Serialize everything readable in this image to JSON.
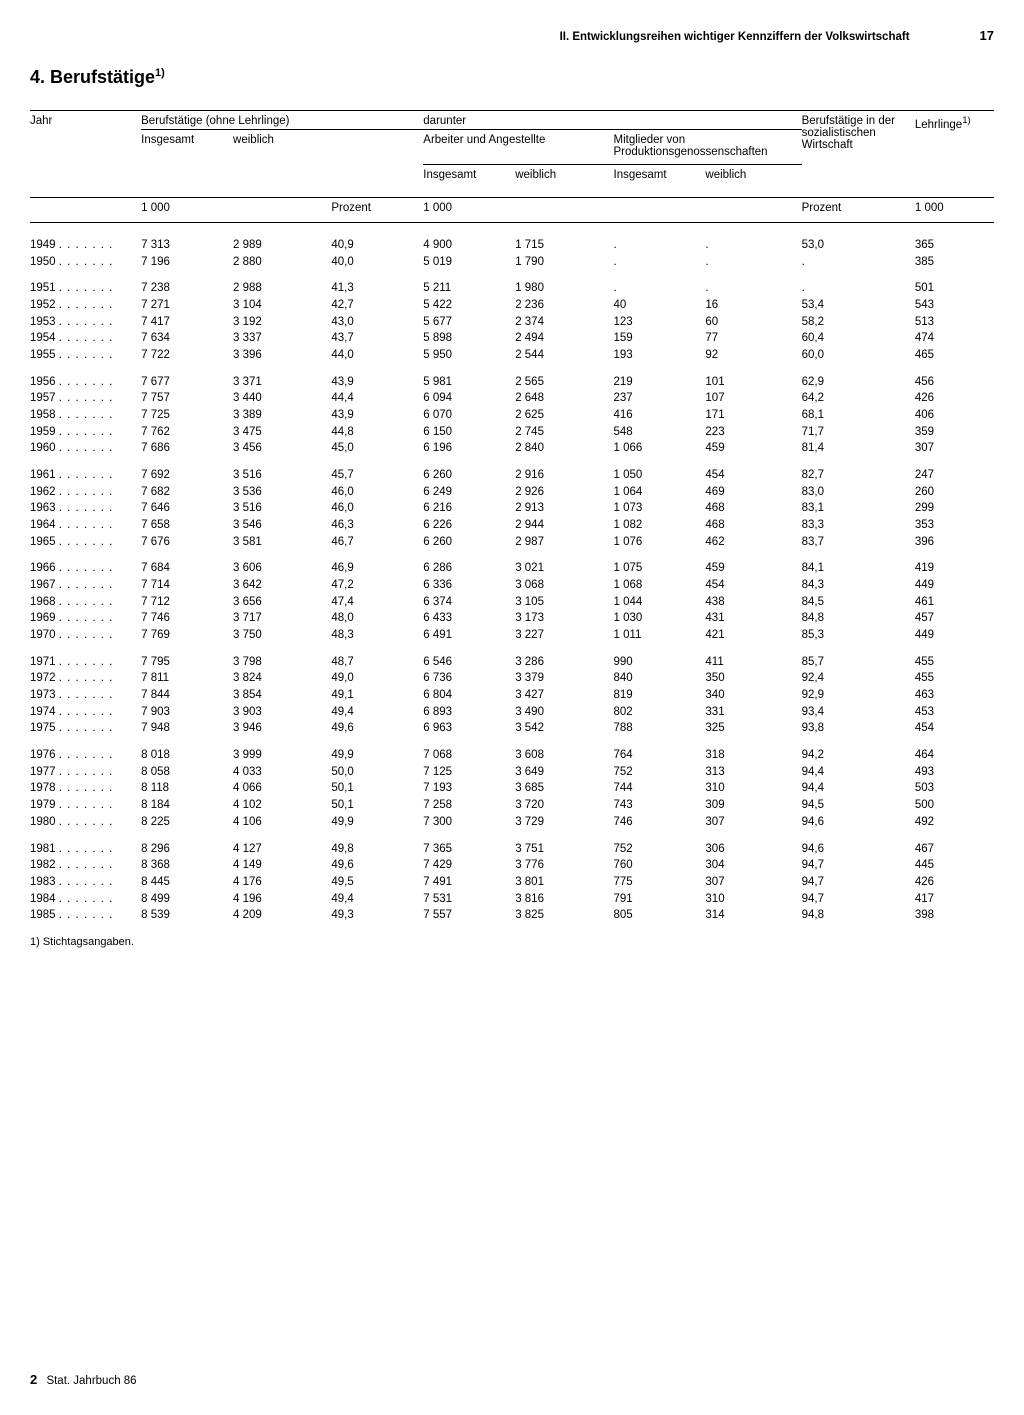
{
  "header": {
    "section_label": "II. Entwicklungsreihen wichtiger Kennziffern der Volkswirtschaft",
    "page_number": "17"
  },
  "title": "4. Berufstätige",
  "title_sup": "1)",
  "footnote": "1) Stichtagsangaben.",
  "footer_left_bold": "2",
  "footer_left_text": "Stat. Jahrbuch 86",
  "columns": {
    "jahr": "Jahr",
    "beruf_ohne": "Berufstätige (ohne Lehrlinge)",
    "insgesamt": "Insgesamt",
    "weiblich": "weiblich",
    "darunter": "darunter",
    "arbeiter": "Arbeiter und Angestellte",
    "mitglieder": "Mitglieder von Produktionsgenossenschaften",
    "soz": "Berufstätige in der sozialistischen Wirtschaft",
    "lehrlinge": "Lehrlinge",
    "lehrlinge_sup": "1)",
    "u1000": "1 000",
    "prozent": "Prozent"
  },
  "table": {
    "groups": [
      [
        {
          "jahr": "1949",
          "c1": "7 313",
          "c2": "2 989",
          "c3": "40,9",
          "c4": "4 900",
          "c5": "1 715",
          "c6": ".",
          "c7": ".",
          "c8": "53,0",
          "c9": "365"
        },
        {
          "jahr": "1950",
          "c1": "7 196",
          "c2": "2 880",
          "c3": "40,0",
          "c4": "5 019",
          "c5": "1 790",
          "c6": ".",
          "c7": ".",
          "c8": ".",
          "c9": "385"
        }
      ],
      [
        {
          "jahr": "1951",
          "c1": "7 238",
          "c2": "2 988",
          "c3": "41,3",
          "c4": "5 211",
          "c5": "1 980",
          "c6": ".",
          "c7": ".",
          "c8": ".",
          "c9": "501"
        },
        {
          "jahr": "1952",
          "c1": "7 271",
          "c2": "3 104",
          "c3": "42,7",
          "c4": "5 422",
          "c5": "2 236",
          "c6": "40",
          "c7": "16",
          "c8": "53,4",
          "c9": "543"
        },
        {
          "jahr": "1953",
          "c1": "7 417",
          "c2": "3 192",
          "c3": "43,0",
          "c4": "5 677",
          "c5": "2 374",
          "c6": "123",
          "c7": "60",
          "c8": "58,2",
          "c9": "513"
        },
        {
          "jahr": "1954",
          "c1": "7 634",
          "c2": "3 337",
          "c3": "43,7",
          "c4": "5 898",
          "c5": "2 494",
          "c6": "159",
          "c7": "77",
          "c8": "60,4",
          "c9": "474"
        },
        {
          "jahr": "1955",
          "c1": "7 722",
          "c2": "3 396",
          "c3": "44,0",
          "c4": "5 950",
          "c5": "2 544",
          "c6": "193",
          "c7": "92",
          "c8": "60,0",
          "c9": "465"
        }
      ],
      [
        {
          "jahr": "1956",
          "c1": "7 677",
          "c2": "3 371",
          "c3": "43,9",
          "c4": "5 981",
          "c5": "2 565",
          "c6": "219",
          "c7": "101",
          "c8": "62,9",
          "c9": "456"
        },
        {
          "jahr": "1957",
          "c1": "7 757",
          "c2": "3 440",
          "c3": "44,4",
          "c4": "6 094",
          "c5": "2 648",
          "c6": "237",
          "c7": "107",
          "c8": "64,2",
          "c9": "426"
        },
        {
          "jahr": "1958",
          "c1": "7 725",
          "c2": "3 389",
          "c3": "43,9",
          "c4": "6 070",
          "c5": "2 625",
          "c6": "416",
          "c7": "171",
          "c8": "68,1",
          "c9": "406"
        },
        {
          "jahr": "1959",
          "c1": "7 762",
          "c2": "3 475",
          "c3": "44,8",
          "c4": "6 150",
          "c5": "2 745",
          "c6": "548",
          "c7": "223",
          "c8": "71,7",
          "c9": "359"
        },
        {
          "jahr": "1960",
          "c1": "7 686",
          "c2": "3 456",
          "c3": "45,0",
          "c4": "6 196",
          "c5": "2 840",
          "c6": "1 066",
          "c7": "459",
          "c8": "81,4",
          "c9": "307"
        }
      ],
      [
        {
          "jahr": "1961",
          "c1": "7 692",
          "c2": "3 516",
          "c3": "45,7",
          "c4": "6 260",
          "c5": "2 916",
          "c6": "1 050",
          "c7": "454",
          "c8": "82,7",
          "c9": "247"
        },
        {
          "jahr": "1962",
          "c1": "7 682",
          "c2": "3 536",
          "c3": "46,0",
          "c4": "6 249",
          "c5": "2 926",
          "c6": "1 064",
          "c7": "469",
          "c8": "83,0",
          "c9": "260"
        },
        {
          "jahr": "1963",
          "c1": "7 646",
          "c2": "3 516",
          "c3": "46,0",
          "c4": "6 216",
          "c5": "2 913",
          "c6": "1 073",
          "c7": "468",
          "c8": "83,1",
          "c9": "299"
        },
        {
          "jahr": "1964",
          "c1": "7 658",
          "c2": "3 546",
          "c3": "46,3",
          "c4": "6 226",
          "c5": "2 944",
          "c6": "1 082",
          "c7": "468",
          "c8": "83,3",
          "c9": "353"
        },
        {
          "jahr": "1965",
          "c1": "7 676",
          "c2": "3 581",
          "c3": "46,7",
          "c4": "6 260",
          "c5": "2 987",
          "c6": "1 076",
          "c7": "462",
          "c8": "83,7",
          "c9": "396"
        }
      ],
      [
        {
          "jahr": "1966",
          "c1": "7 684",
          "c2": "3 606",
          "c3": "46,9",
          "c4": "6 286",
          "c5": "3 021",
          "c6": "1 075",
          "c7": "459",
          "c8": "84,1",
          "c9": "419"
        },
        {
          "jahr": "1967",
          "c1": "7 714",
          "c2": "3 642",
          "c3": "47,2",
          "c4": "6 336",
          "c5": "3 068",
          "c6": "1 068",
          "c7": "454",
          "c8": "84,3",
          "c9": "449"
        },
        {
          "jahr": "1968",
          "c1": "7 712",
          "c2": "3 656",
          "c3": "47,4",
          "c4": "6 374",
          "c5": "3 105",
          "c6": "1 044",
          "c7": "438",
          "c8": "84,5",
          "c9": "461"
        },
        {
          "jahr": "1969",
          "c1": "7 746",
          "c2": "3 717",
          "c3": "48,0",
          "c4": "6 433",
          "c5": "3 173",
          "c6": "1 030",
          "c7": "431",
          "c8": "84,8",
          "c9": "457"
        },
        {
          "jahr": "1970",
          "c1": "7 769",
          "c2": "3 750",
          "c3": "48,3",
          "c4": "6 491",
          "c5": "3 227",
          "c6": "1 011",
          "c7": "421",
          "c8": "85,3",
          "c9": "449"
        }
      ],
      [
        {
          "jahr": "1971",
          "c1": "7 795",
          "c2": "3 798",
          "c3": "48,7",
          "c4": "6 546",
          "c5": "3 286",
          "c6": "990",
          "c7": "411",
          "c8": "85,7",
          "c9": "455"
        },
        {
          "jahr": "1972",
          "c1": "7 811",
          "c2": "3 824",
          "c3": "49,0",
          "c4": "6 736",
          "c5": "3 379",
          "c6": "840",
          "c7": "350",
          "c8": "92,4",
          "c9": "455"
        },
        {
          "jahr": "1973",
          "c1": "7 844",
          "c2": "3 854",
          "c3": "49,1",
          "c4": "6 804",
          "c5": "3 427",
          "c6": "819",
          "c7": "340",
          "c8": "92,9",
          "c9": "463"
        },
        {
          "jahr": "1974",
          "c1": "7 903",
          "c2": "3 903",
          "c3": "49,4",
          "c4": "6 893",
          "c5": "3 490",
          "c6": "802",
          "c7": "331",
          "c8": "93,4",
          "c9": "453"
        },
        {
          "jahr": "1975",
          "c1": "7 948",
          "c2": "3 946",
          "c3": "49,6",
          "c4": "6 963",
          "c5": "3 542",
          "c6": "788",
          "c7": "325",
          "c8": "93,8",
          "c9": "454"
        }
      ],
      [
        {
          "jahr": "1976",
          "c1": "8 018",
          "c2": "3 999",
          "c3": "49,9",
          "c4": "7 068",
          "c5": "3 608",
          "c6": "764",
          "c7": "318",
          "c8": "94,2",
          "c9": "464"
        },
        {
          "jahr": "1977",
          "c1": "8 058",
          "c2": "4 033",
          "c3": "50,0",
          "c4": "7 125",
          "c5": "3 649",
          "c6": "752",
          "c7": "313",
          "c8": "94,4",
          "c9": "493"
        },
        {
          "jahr": "1978",
          "c1": "8 118",
          "c2": "4 066",
          "c3": "50,1",
          "c4": "7 193",
          "c5": "3 685",
          "c6": "744",
          "c7": "310",
          "c8": "94,4",
          "c9": "503"
        },
        {
          "jahr": "1979",
          "c1": "8 184",
          "c2": "4 102",
          "c3": "50,1",
          "c4": "7 258",
          "c5": "3 720",
          "c6": "743",
          "c7": "309",
          "c8": "94,5",
          "c9": "500"
        },
        {
          "jahr": "1980",
          "c1": "8 225",
          "c2": "4 106",
          "c3": "49,9",
          "c4": "7 300",
          "c5": "3 729",
          "c6": "746",
          "c7": "307",
          "c8": "94,6",
          "c9": "492"
        }
      ],
      [
        {
          "jahr": "1981",
          "c1": "8 296",
          "c2": "4 127",
          "c3": "49,8",
          "c4": "7 365",
          "c5": "3 751",
          "c6": "752",
          "c7": "306",
          "c8": "94,6",
          "c9": "467"
        },
        {
          "jahr": "1982",
          "c1": "8 368",
          "c2": "4 149",
          "c3": "49,6",
          "c4": "7 429",
          "c5": "3 776",
          "c6": "760",
          "c7": "304",
          "c8": "94,7",
          "c9": "445"
        },
        {
          "jahr": "1983",
          "c1": "8 445",
          "c2": "4 176",
          "c3": "49,5",
          "c4": "7 491",
          "c5": "3 801",
          "c6": "775",
          "c7": "307",
          "c8": "94,7",
          "c9": "426"
        },
        {
          "jahr": "1984",
          "c1": "8 499",
          "c2": "4 196",
          "c3": "49,4",
          "c4": "7 531",
          "c5": "3 816",
          "c6": "791",
          "c7": "310",
          "c8": "94,7",
          "c9": "417"
        },
        {
          "jahr": "1985",
          "c1": "8 539",
          "c2": "4 209",
          "c3": "49,3",
          "c4": "7 557",
          "c5": "3 825",
          "c6": "805",
          "c7": "314",
          "c8": "94,8",
          "c9": "398"
        }
      ]
    ]
  }
}
